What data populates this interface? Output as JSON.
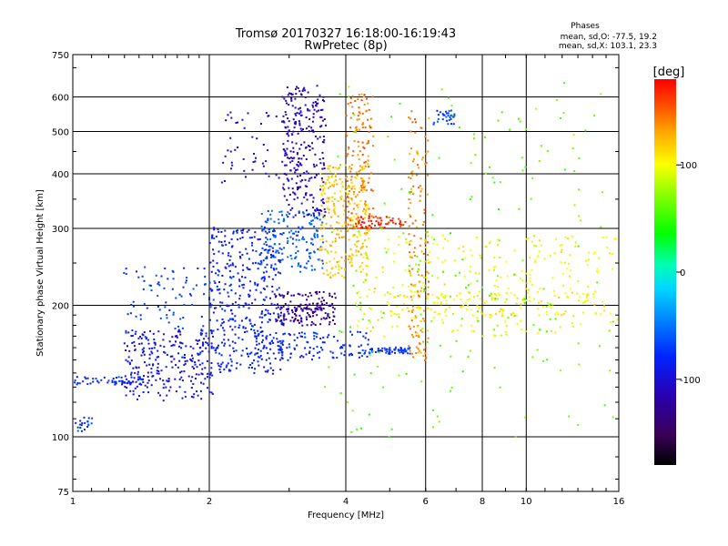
{
  "chart_data": {
    "type": "scatter",
    "title": "Tromsø 20170327 16:18:00-16:19:43",
    "subtitle": "RwPretec (8p)",
    "xlabel": "Frequency [MHz]",
    "ylabel": "Stationary phase Virtual Height [km]",
    "x_scale": "log",
    "y_scale": "log",
    "xlim": [
      1,
      16
    ],
    "ylim": [
      75,
      750
    ],
    "x_ticks": [
      1,
      2,
      4,
      6,
      8,
      10,
      16
    ],
    "y_ticks": [
      75,
      100,
      200,
      300,
      400,
      500,
      600,
      750
    ],
    "grid": true,
    "phase_stats": {
      "heading": "Phases",
      "o_line": "mean, sd,O: -77.5, 19.2",
      "x_line": "mean, sd,X: 103.1, 23.3"
    },
    "colorbar": {
      "label": "[deg]",
      "range": [
        -180,
        180
      ],
      "ticks": [
        100,
        0,
        -100
      ],
      "tick_labels": [
        "100",
        "0",
        "-100"
      ]
    },
    "point_groups": [
      {
        "x": [
          1.0,
          1.12
        ],
        "y": [
          103,
          111
        ],
        "phase_deg": -75,
        "spread_x": 0.01,
        "spread_y": 0.015,
        "count": 20
      },
      {
        "x": [
          1.0,
          1.45
        ],
        "y": [
          132,
          137
        ],
        "phase_deg": -80,
        "spread_x": 0.02,
        "spread_y": 0.02,
        "count": 60
      },
      {
        "x": [
          1.3,
          2.05
        ],
        "y": [
          122,
          175
        ],
        "phase_deg": -95,
        "spread_x": 0.05,
        "spread_y": 0.05,
        "count": 260
      },
      {
        "x": [
          1.3,
          2.1
        ],
        "y": [
          170,
          245
        ],
        "phase_deg": -70,
        "spread_x": 0.04,
        "spread_y": 0.05,
        "count": 90
      },
      {
        "x": [
          2.0,
          2.9
        ],
        "y": [
          140,
          300
        ],
        "phase_deg": -85,
        "spread_x": 0.05,
        "spread_y": 0.05,
        "count": 420
      },
      {
        "x": [
          2.6,
          3.6
        ],
        "y": [
          240,
          330
        ],
        "phase_deg": -60,
        "spread_x": 0.04,
        "spread_y": 0.04,
        "count": 160
      },
      {
        "x": [
          2.9,
          3.6
        ],
        "y": [
          320,
          640
        ],
        "phase_deg": -110,
        "spread_x": 0.03,
        "spread_y": 0.05,
        "count": 260
      },
      {
        "x": [
          2.1,
          3.2
        ],
        "y": [
          380,
          560
        ],
        "phase_deg": -100,
        "spread_x": 0.05,
        "spread_y": 0.05,
        "count": 60
      },
      {
        "x": [
          2.8,
          3.8
        ],
        "y": [
          180,
          215
        ],
        "phase_deg": -130,
        "spread_x": 0.04,
        "spread_y": 0.02,
        "count": 160
      },
      {
        "x": [
          2.5,
          4.5
        ],
        "y": [
          150,
          175
        ],
        "phase_deg": -80,
        "spread_x": 0.05,
        "spread_y": 0.02,
        "count": 130
      },
      {
        "x": [
          3.5,
          4.5
        ],
        "y": [
          230,
          420
        ],
        "phase_deg": 120,
        "spread_x": 0.03,
        "spread_y": 0.05,
        "count": 260
      },
      {
        "x": [
          4.0,
          4.6
        ],
        "y": [
          300,
          620
        ],
        "phase_deg": 145,
        "spread_x": 0.02,
        "spread_y": 0.05,
        "count": 140
      },
      {
        "x": [
          4.2,
          5.4
        ],
        "y": [
          300,
          320
        ],
        "phase_deg": 170,
        "spread_x": 0.03,
        "spread_y": 0.01,
        "count": 60
      },
      {
        "x": [
          4.5,
          5.6
        ],
        "y": [
          155,
          160
        ],
        "phase_deg": -75,
        "spread_x": 0.03,
        "spread_y": 0.01,
        "count": 60
      },
      {
        "x": [
          5.5,
          6.1
        ],
        "y": [
          150,
          560
        ],
        "phase_deg": 140,
        "spread_x": 0.02,
        "spread_y": 0.08,
        "count": 150
      },
      {
        "x": [
          4.2,
          16
        ],
        "y": [
          170,
          290
        ],
        "phase_deg": 100,
        "spread_x": 0.1,
        "spread_y": 0.06,
        "count": 300
      },
      {
        "x": [
          5.0,
          15
        ],
        "y": [
          190,
          215
        ],
        "phase_deg": 105,
        "spread_x": 0.08,
        "spread_y": 0.02,
        "count": 120
      },
      {
        "x": [
          6.2,
          7.0
        ],
        "y": [
          520,
          560
        ],
        "phase_deg": -70,
        "spread_x": 0.02,
        "spread_y": 0.01,
        "count": 30
      },
      {
        "x": [
          3.6,
          16
        ],
        "y": [
          100,
          650
        ],
        "phase_deg": 60,
        "spread_x": 0.15,
        "spread_y": 0.15,
        "count": 200
      }
    ]
  }
}
